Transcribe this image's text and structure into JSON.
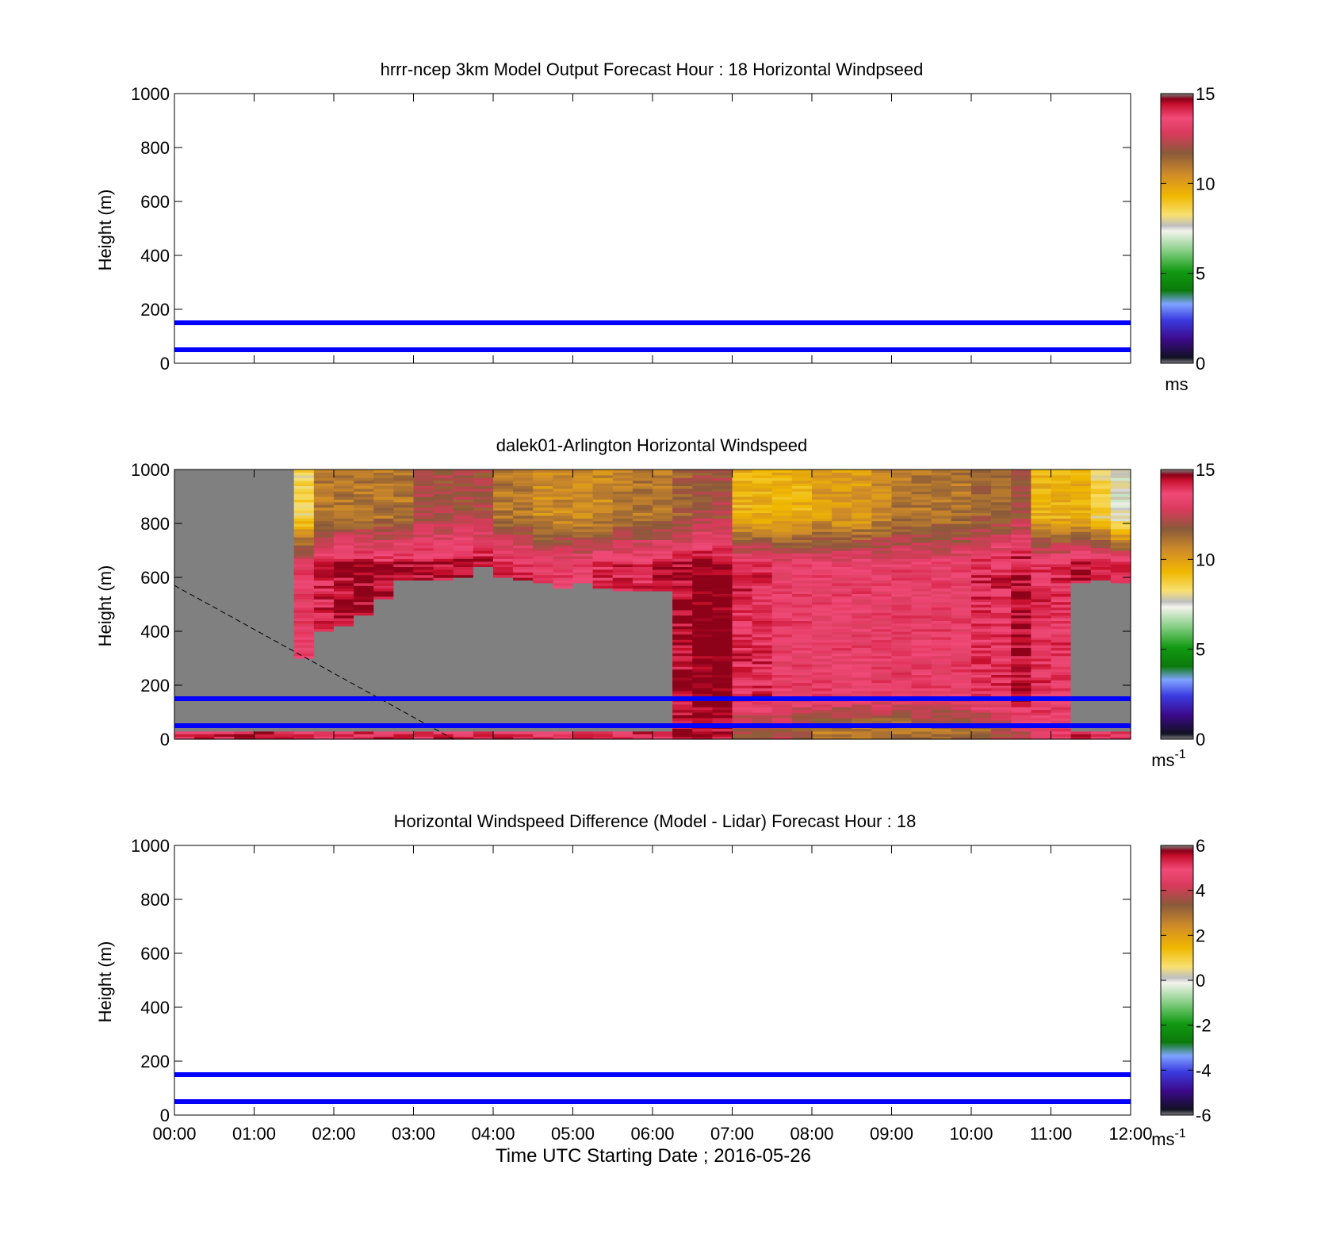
{
  "figure": {
    "xlabel": "Time UTC  Starting Date ; 2016-05-26"
  },
  "colors": {
    "guide_lines": "#0000ff",
    "nodata": "#808080",
    "colormap": [
      {
        "t": 0.0,
        "c": "#808080"
      },
      {
        "t": 0.02,
        "c": "#111122"
      },
      {
        "t": 0.09,
        "c": "#3c0a8c"
      },
      {
        "t": 0.16,
        "c": "#3a3ae0"
      },
      {
        "t": 0.22,
        "c": "#7fa4ff"
      },
      {
        "t": 0.27,
        "c": "#0a7a0a"
      },
      {
        "t": 0.34,
        "c": "#129a12"
      },
      {
        "t": 0.42,
        "c": "#8ad08a"
      },
      {
        "t": 0.49,
        "c": "#f4f4ec"
      },
      {
        "t": 0.51,
        "c": "#bfbfbf"
      },
      {
        "t": 0.55,
        "c": "#f8e070"
      },
      {
        "t": 0.62,
        "c": "#f0b800"
      },
      {
        "t": 0.7,
        "c": "#d08c28"
      },
      {
        "t": 0.78,
        "c": "#8a5a3a"
      },
      {
        "t": 0.85,
        "c": "#d83a5a"
      },
      {
        "t": 0.91,
        "c": "#f04a78"
      },
      {
        "t": 0.96,
        "c": "#c8102e"
      },
      {
        "t": 0.98,
        "c": "#8a0018"
      },
      {
        "t": 1.0,
        "c": "#808080"
      }
    ]
  },
  "panels": [
    {
      "title": "hrrr-ncep 3km Model Output   Forecast Hour : 18 Horizontal Windpseed",
      "ylabel": "Height (m)",
      "yticks": [
        "0",
        "200",
        "400",
        "600",
        "800",
        "1000"
      ],
      "colorbar": {
        "ticks": [
          "0",
          "5",
          "10",
          "15"
        ],
        "unit": "ms",
        "unit_sup": ""
      }
    },
    {
      "title": "dalek01-Arlington  Horizontal Windspeed",
      "ylabel": "Height (m)",
      "yticks": [
        "0",
        "200",
        "400",
        "600",
        "800",
        "1000"
      ],
      "colorbar": {
        "ticks": [
          "0",
          "5",
          "10",
          "15"
        ],
        "unit": "ms",
        "unit_sup": "-1"
      }
    },
    {
      "title": "Horizontal Windspeed Difference (Model - Lidar) Forecast Hour : 18",
      "ylabel": "Height (m)",
      "yticks": [
        "0",
        "200",
        "400",
        "600",
        "800",
        "1000"
      ],
      "xticks": [
        "00:00",
        "01:00",
        "02:00",
        "03:00",
        "04:00",
        "05:00",
        "06:00",
        "07:00",
        "08:00",
        "09:00",
        "10:00",
        "11:00",
        "12:00"
      ],
      "colorbar": {
        "ticks": [
          "-6",
          "-4",
          "-2",
          "0",
          "2",
          "4",
          "6"
        ],
        "unit": "ms",
        "unit_sup": "-1"
      }
    }
  ],
  "chart_data": [
    {
      "type": "heatmap",
      "title": "hrrr-ncep 3km Model Output   Forecast Hour : 18 Horizontal Windpseed",
      "ylabel": "Height (m)",
      "xlim": [
        "00:00",
        "12:00"
      ],
      "ylim": [
        0,
        1000
      ],
      "clim": [
        0,
        15
      ],
      "colorbar_label": "ms",
      "values": [],
      "reference_lines_height_m": [
        50,
        150
      ]
    },
    {
      "type": "heatmap",
      "title": "dalek01-Arlington  Horizontal Windspeed",
      "ylabel": "Height (m)",
      "xlim": [
        "00:00",
        "12:00"
      ],
      "ylim": [
        0,
        1000
      ],
      "clim": [
        0,
        15
      ],
      "colorbar_label": "ms-1",
      "time_bins_hours": [
        0.0,
        0.25,
        0.5,
        0.75,
        1.0,
        1.25,
        1.5,
        1.75,
        2.0,
        2.25,
        2.5,
        2.75,
        3.0,
        3.25,
        3.5,
        3.75,
        4.0,
        4.25,
        4.5,
        4.75,
        5.0,
        5.25,
        5.5,
        5.75,
        6.0,
        6.25,
        6.5,
        6.75,
        7.0,
        7.25,
        7.5,
        7.75,
        8.0,
        8.25,
        8.5,
        8.75,
        9.0,
        9.25,
        9.5,
        9.75,
        10.0,
        10.25,
        10.5,
        10.75,
        11.0,
        11.25,
        11.5,
        11.75
      ],
      "no_data_below_height_m": [
        1000,
        1000,
        1000,
        1000,
        1000,
        1000,
        300,
        400,
        420,
        460,
        520,
        590,
        590,
        590,
        600,
        640,
        600,
        590,
        580,
        560,
        580,
        560,
        550,
        550,
        550,
        0,
        0,
        0,
        0,
        0,
        0,
        0,
        0,
        0,
        0,
        0,
        0,
        0,
        0,
        0,
        0,
        0,
        0,
        0,
        0,
        580,
        590,
        580
      ],
      "no_data_above_height_m": 30,
      "upper_layer_speed_ms": [
        9.5,
        9.5,
        9.5,
        10,
        10,
        9.5,
        8.5,
        11,
        11,
        11,
        11,
        11,
        12,
        12,
        12,
        12,
        11,
        11,
        10.5,
        10.5,
        10.5,
        10.5,
        11,
        11,
        11,
        11.5,
        12,
        12,
        9.5,
        9.5,
        9.5,
        9.5,
        10,
        10,
        10,
        10.5,
        11,
        11,
        11,
        11,
        11.5,
        11.5,
        12,
        9.5,
        9.5,
        9.5,
        8.5,
        7.5
      ],
      "mid_layer_speed_ms": [
        13.5,
        13.5,
        14,
        14,
        14.5,
        14,
        13.5,
        14,
        14.5,
        14.5,
        14.5,
        14.5,
        14.5,
        14.5,
        14.5,
        14.5,
        14,
        14,
        13.5,
        13.5,
        13.5,
        14,
        14,
        14,
        14.5,
        14.5,
        15,
        15,
        14,
        14,
        13.5,
        13.5,
        13.5,
        13.5,
        13.5,
        13.5,
        13.5,
        13.5,
        13.5,
        13.5,
        14,
        14,
        14.5,
        14,
        14,
        14.5,
        14.5,
        14
      ],
      "lower_layer_speed_ms": [
        14,
        14,
        14,
        14.5,
        14.5,
        14.5,
        14,
        14,
        14,
        14,
        14,
        14,
        14,
        14,
        14,
        14,
        14,
        14,
        14,
        14,
        14,
        14,
        14,
        14,
        14,
        14.5,
        14.5,
        14.5,
        12,
        12,
        12,
        11.5,
        11,
        11,
        11,
        11,
        11,
        11,
        11,
        11.5,
        11.5,
        12,
        12.5,
        13.5,
        13.5,
        14,
        14,
        14
      ],
      "reference_lines_height_m": [
        50,
        150
      ]
    },
    {
      "type": "heatmap",
      "title": "Horizontal Windspeed Difference (Model - Lidar) Forecast Hour : 18",
      "ylabel": "Height (m)",
      "xlabel": "Time UTC  Starting Date ; 2016-05-26",
      "xlim": [
        "00:00",
        "12:00"
      ],
      "ylim": [
        0,
        1000
      ],
      "clim": [
        -6,
        6
      ],
      "colorbar_label": "ms-1",
      "values": [],
      "reference_lines_height_m": [
        50,
        150
      ]
    }
  ]
}
